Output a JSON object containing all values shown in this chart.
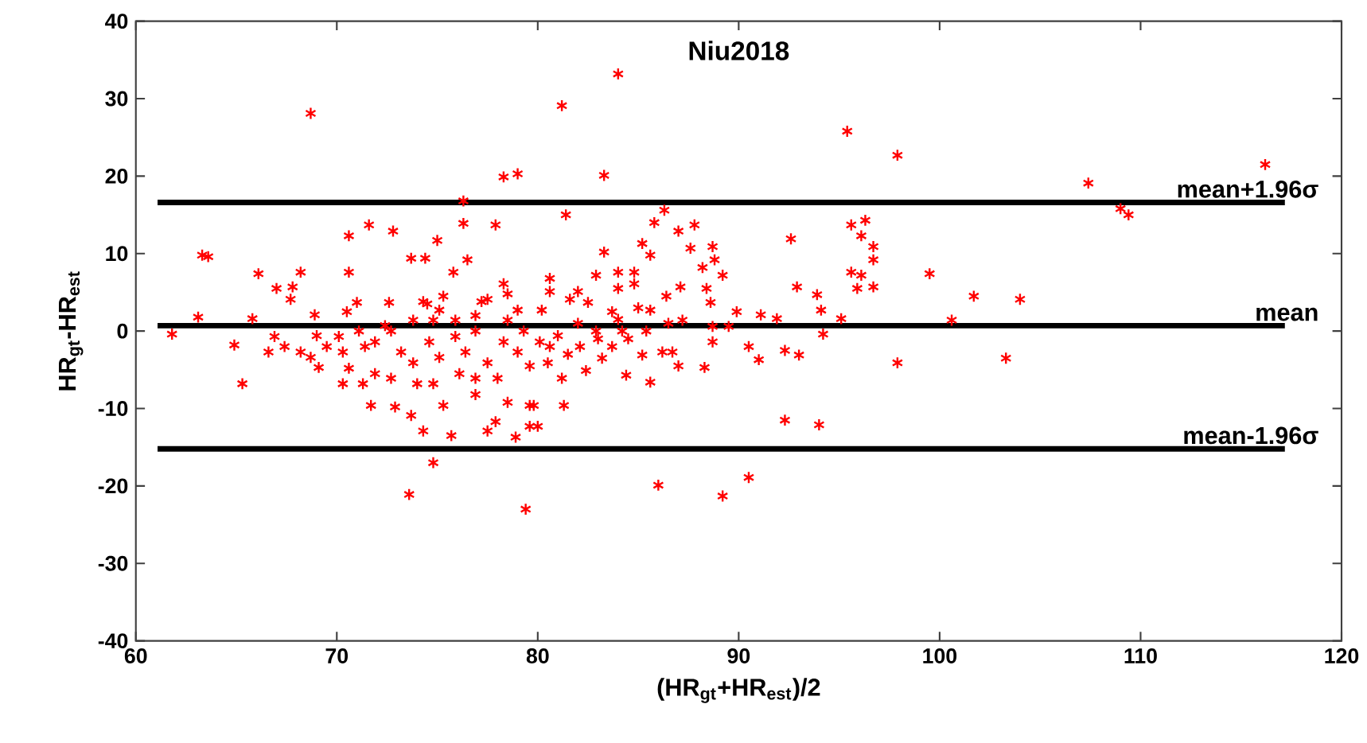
{
  "chart_data": {
    "type": "scatter",
    "title": "Niu2018",
    "xlabel": "(HR$_{gt}$+HR$_{est}$)/2",
    "ylabel": "HR$_{gt}$-HR$_{est}$",
    "xlim": [
      60,
      120
    ],
    "ylim": [
      -40,
      40
    ],
    "xticks": [
      60,
      70,
      80,
      90,
      100,
      110,
      120
    ],
    "yticks": [
      -40,
      -30,
      -20,
      -10,
      0,
      10,
      20,
      30,
      40
    ],
    "marker": "cross",
    "ref_lines": [
      {
        "axis": "y",
        "value": 16.6,
        "label": "mean+1.96σ",
        "color": "#000000"
      },
      {
        "axis": "y",
        "value": 0.7,
        "label": "mean",
        "color": "#000000"
      },
      {
        "axis": "y",
        "value": -15.2,
        "label": "mean-1.96σ",
        "color": "#000000"
      }
    ],
    "series": [
      {
        "color": "#ff0000",
        "x": [
          68.7,
          84.0,
          81.2,
          83.3,
          78.3,
          79.0,
          95.4,
          97.9,
          107.4,
          109.0,
          109.4,
          116.2,
          99.5,
          101.7,
          104.0,
          100.6,
          103.3,
          97.9,
          73.6,
          74.8,
          79.4,
          86.0,
          89.2,
          90.5,
          92.3,
          94.0,
          95.6,
          96.3,
          96.1,
          96.7,
          96.7,
          95.6,
          96.1,
          96.7,
          95.9,
          95.1,
          94.1,
          93.9,
          92.9,
          92.6,
          94.2,
          92.3,
          93.0,
          91.0,
          90.5,
          91.9,
          91.1,
          89.9,
          88.7,
          88.3,
          87.0,
          85.6,
          84.4,
          82.4,
          81.2,
          81.3,
          79.8,
          80.0,
          81.4,
          86.3,
          85.8,
          87.8,
          87.0,
          85.2,
          83.3,
          88.7,
          88.8,
          87.6,
          88.2,
          89.2,
          85.6,
          84.8,
          84.0,
          82.9,
          80.6,
          82.0,
          80.6,
          84.0,
          84.8,
          87.1,
          88.4,
          88.6,
          86.4,
          85.6,
          83.7,
          82.5,
          81.6,
          80.2,
          87.2,
          85.4,
          84.2,
          82.9,
          81.0,
          80.1,
          80.6,
          82.1,
          83.7,
          85.2,
          86.2,
          86.7,
          83.2,
          80.5,
          88.7,
          89.5,
          63.3,
          63.6,
          66.1,
          67.0,
          67.8,
          67.7,
          68.2,
          70.6,
          71.6,
          72.8,
          75.0,
          73.7,
          74.4,
          76.3,
          76.3,
          77.9,
          76.5,
          75.8,
          75.3,
          70.6,
          72.6,
          74.5,
          63.1,
          61.8,
          64.9,
          65.3,
          65.8,
          66.6,
          68.9,
          69.0,
          68.2,
          69.1,
          70.5,
          71.0,
          70.3,
          71.3,
          71.7,
          72.9,
          73.7,
          74.3,
          75.3,
          75.7,
          76.9,
          77.5,
          77.9,
          78.5,
          78.9,
          79.6,
          79.6,
          79.6,
          71.1,
          71.9,
          72.7,
          73.2,
          73.8,
          74.6,
          75.1,
          75.9,
          76.4,
          76.9,
          77.5,
          78.3,
          78.5,
          79.0,
          78.5,
          77.5,
          76.9,
          75.9,
          74.8,
          73.8,
          72.4,
          71.4,
          70.3,
          69.5,
          68.7,
          67.4,
          66.9,
          71.9,
          72.7,
          74.0,
          74.8,
          76.1,
          76.9,
          78.0,
          79.0,
          79.3,
          78.3,
          77.2,
          74.3,
          75.1,
          70.6,
          70.1,
          82.0,
          83.0,
          81.5,
          84.0,
          85.0,
          86.5,
          84.5
        ],
        "values": [
          28.1,
          33.2,
          29.1,
          20.1,
          19.9,
          20.3,
          25.8,
          22.7,
          19.1,
          15.8,
          15.0,
          21.5,
          7.4,
          4.5,
          4.1,
          1.4,
          -3.5,
          -4.1,
          -21.1,
          -17.0,
          -23.0,
          -19.9,
          -21.3,
          -18.9,
          -11.5,
          -12.1,
          13.7,
          14.3,
          12.3,
          10.9,
          9.2,
          7.6,
          7.2,
          5.7,
          5.5,
          1.6,
          2.7,
          4.7,
          5.7,
          11.9,
          -0.4,
          -2.5,
          -3.1,
          -3.7,
          -2.0,
          1.6,
          2.1,
          2.5,
          -1.4,
          -4.7,
          -4.5,
          -6.6,
          -5.7,
          -5.1,
          -6.1,
          -9.6,
          -9.6,
          -12.3,
          15.0,
          15.6,
          14.0,
          13.7,
          12.9,
          11.3,
          10.2,
          10.9,
          9.2,
          10.7,
          8.2,
          7.2,
          9.8,
          7.6,
          7.6,
          7.2,
          6.8,
          5.1,
          5.1,
          5.5,
          6.1,
          5.7,
          5.5,
          3.7,
          4.5,
          2.7,
          2.5,
          3.7,
          4.1,
          2.7,
          1.4,
          0.0,
          0.0,
          0.0,
          -0.6,
          -1.4,
          -2.0,
          -2.0,
          -2.0,
          -3.1,
          -2.7,
          -2.7,
          -3.5,
          -4.1,
          0.6,
          0.6,
          9.8,
          9.6,
          7.4,
          5.5,
          5.7,
          4.1,
          7.6,
          12.3,
          13.7,
          12.9,
          11.7,
          9.4,
          9.4,
          13.9,
          16.8,
          13.7,
          9.2,
          7.6,
          4.5,
          7.6,
          3.7,
          3.5,
          1.8,
          -0.4,
          -1.8,
          -6.8,
          1.6,
          -2.7,
          2.1,
          -0.6,
          -2.7,
          -4.7,
          2.5,
          3.7,
          -6.8,
          -6.8,
          -9.6,
          -9.8,
          -10.9,
          -12.9,
          -9.6,
          -13.5,
          -8.2,
          -12.9,
          -11.7,
          -9.2,
          -13.7,
          -12.3,
          -9.6,
          -4.5,
          0.0,
          -1.4,
          0.0,
          -2.7,
          -4.1,
          -1.4,
          -3.4,
          -0.7,
          -2.7,
          0.0,
          -4.1,
          -1.4,
          1.4,
          2.7,
          4.8,
          4.1,
          2.0,
          1.4,
          1.4,
          1.4,
          0.7,
          -2.0,
          -2.7,
          -2.0,
          -3.4,
          -2.0,
          -0.7,
          -5.5,
          -6.1,
          -6.8,
          -6.8,
          -5.5,
          -6.1,
          -6.1,
          -2.7,
          0.0,
          6.1,
          3.8,
          3.8,
          2.7,
          -4.8,
          -0.7,
          1.0,
          -1.0,
          -3.0,
          1.5,
          3.0,
          1.0,
          -1.0
        ]
      }
    ]
  }
}
